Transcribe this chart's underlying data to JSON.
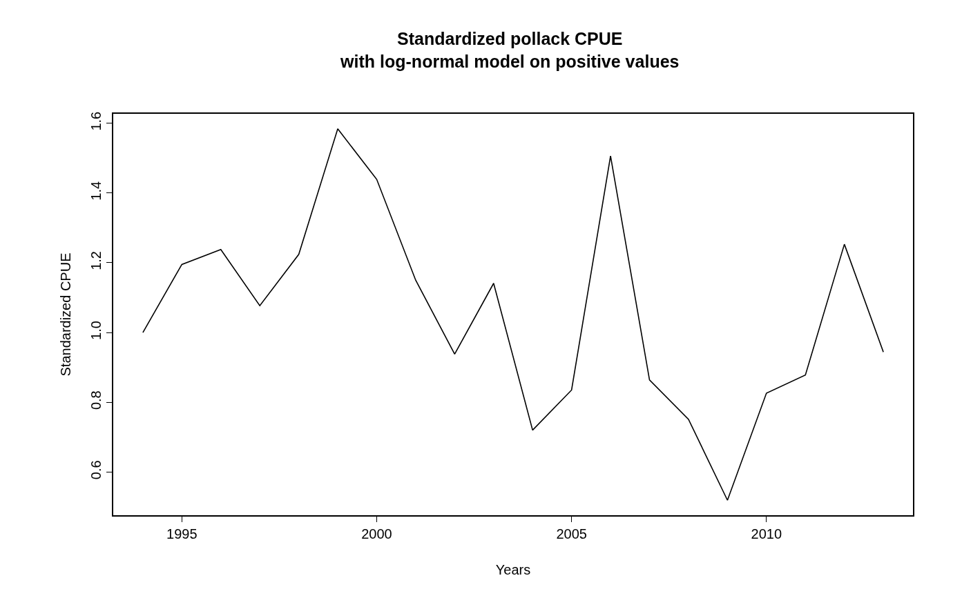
{
  "chart_data": {
    "type": "line",
    "title": "Standardized pollack CPUE\nwith log-normal model on positive values",
    "xlabel": "Years",
    "ylabel": "Standardized CPUE",
    "x": [
      1994,
      1995,
      1996,
      1997,
      1998,
      1999,
      2000,
      2001,
      2002,
      2003,
      2004,
      2005,
      2006,
      2007,
      2008,
      2009,
      2010,
      2011,
      2012,
      2013
    ],
    "series": [
      {
        "color": "#000000",
        "values": [
          1.0,
          1.195,
          1.238,
          1.077,
          1.224,
          1.584,
          1.439,
          1.15,
          0.938,
          1.141,
          0.72,
          0.835,
          1.506,
          0.864,
          0.751,
          0.519,
          0.826,
          0.878,
          1.253,
          0.944
        ]
      }
    ],
    "xlim": [
      1993.24,
      2013.76
    ],
    "ylim": [
      0.476,
      1.627
    ],
    "xticks": [
      1995,
      2000,
      2005,
      2010
    ],
    "yticks": [
      0.6,
      0.8,
      {
        "value": 1.0,
        "label": "1.0"
      },
      1.2,
      1.4,
      1.6
    ],
    "marker": "none",
    "line_style": "solid"
  }
}
